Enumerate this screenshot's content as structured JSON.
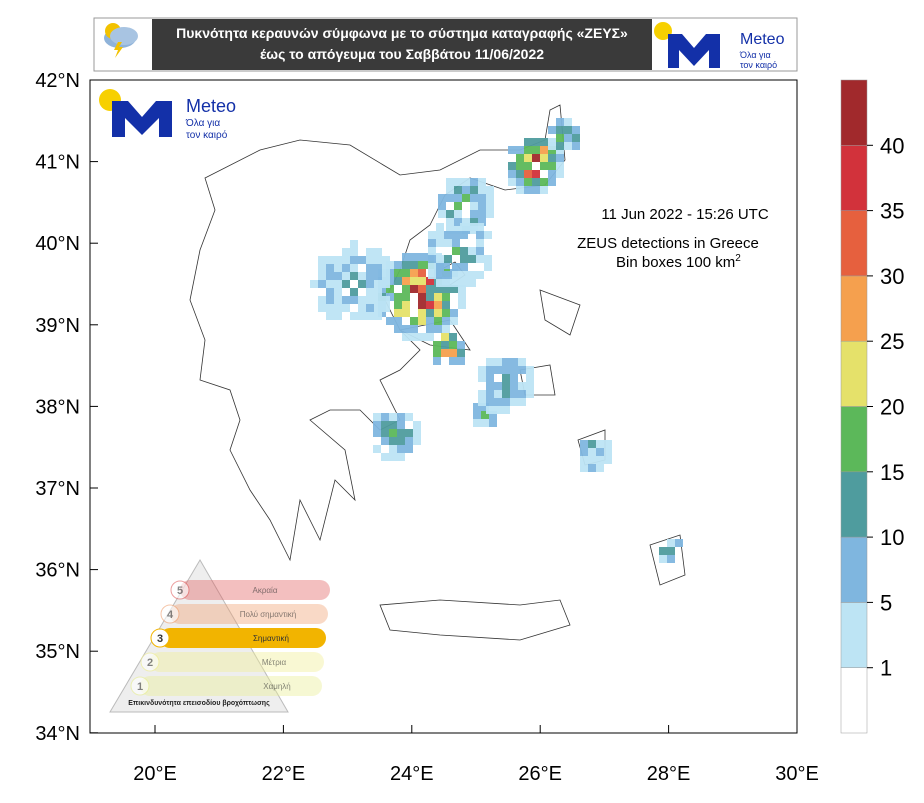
{
  "header": {
    "title_line1": "Πυκνότητα κεραυνών σύμφωνα με το σύστημα καταγραφής «ΖΕΥΣ»",
    "title_line2": "έως το απόγευμα του Σαββάτου 11/06/2022"
  },
  "logo": {
    "name": "Meteo",
    "tagline_1": "Όλα για",
    "tagline_2": "τον καιρό"
  },
  "map": {
    "timestamp": "11  Jun 2022 - 15:26 UTC",
    "caption_line1": "ZEUS detections in Greece",
    "caption_line2": "Bin boxes 100 km",
    "caption_sup": "2",
    "lat_ticks": [
      "42°N",
      "41°N",
      "40°N",
      "39°N",
      "38°N",
      "37°N",
      "36°N",
      "35°N",
      "34°N"
    ],
    "lon_ticks": [
      "20°E",
      "22°E",
      "24°E",
      "26°E",
      "28°E",
      "30°E"
    ]
  },
  "colorbar": {
    "ticks": [
      1,
      5,
      10,
      15,
      20,
      25,
      30,
      35,
      40
    ],
    "colors": [
      "#ffffff",
      "#bde4f4",
      "#7fb6df",
      "#4f9c9e",
      "#5cb85a",
      "#e5e16a",
      "#f5a04e",
      "#e6603e",
      "#d2323b",
      "#a1292c"
    ]
  },
  "warning_scale": {
    "levels": [
      {
        "number": "5",
        "label": "Ακραία"
      },
      {
        "number": "4",
        "label": "Πολύ σημαντική"
      },
      {
        "number": "3",
        "label": "Σημαντική"
      },
      {
        "number": "2",
        "label": "Μέτρια"
      },
      {
        "number": "1",
        "label": "Χαμηλή"
      }
    ],
    "footer": "Επικινδυνότητα επεισοδίου βροχόπτωσης"
  }
}
